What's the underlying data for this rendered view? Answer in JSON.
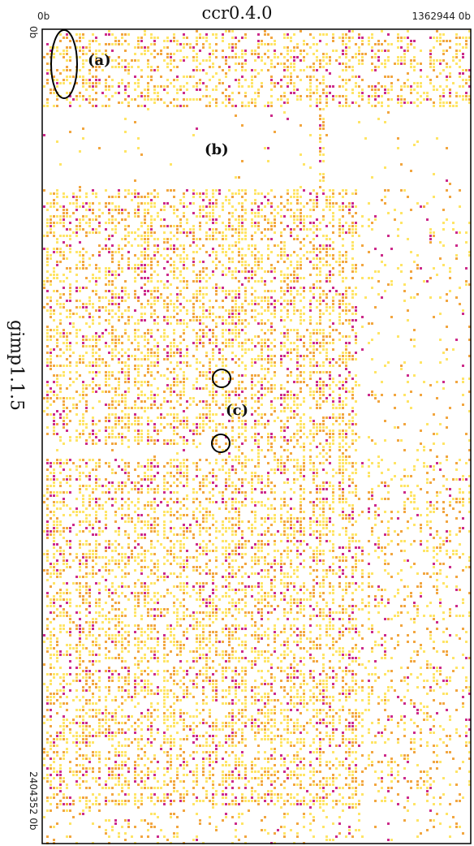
{
  "chart_data": {
    "type": "heatmap",
    "title": "ccr0.4.0",
    "xlabel": "",
    "ylabel": "gimp1.1.5",
    "x_ticks": [
      "0b",
      "1362944 0b"
    ],
    "y_ticks": [
      "0b",
      "2404352 0b"
    ],
    "x_range": [
      0,
      13629440
    ],
    "y_range": [
      0,
      24043520
    ],
    "colors": {
      "low": "#ffe566",
      "mid": "#f2a640",
      "high": "#cc2a8a",
      "background": "#ffffff",
      "border": "#000000"
    },
    "annotations": [
      {
        "label": "(a)"
      },
      {
        "label": "(b)"
      },
      {
        "label": "(c)"
      }
    ]
  }
}
